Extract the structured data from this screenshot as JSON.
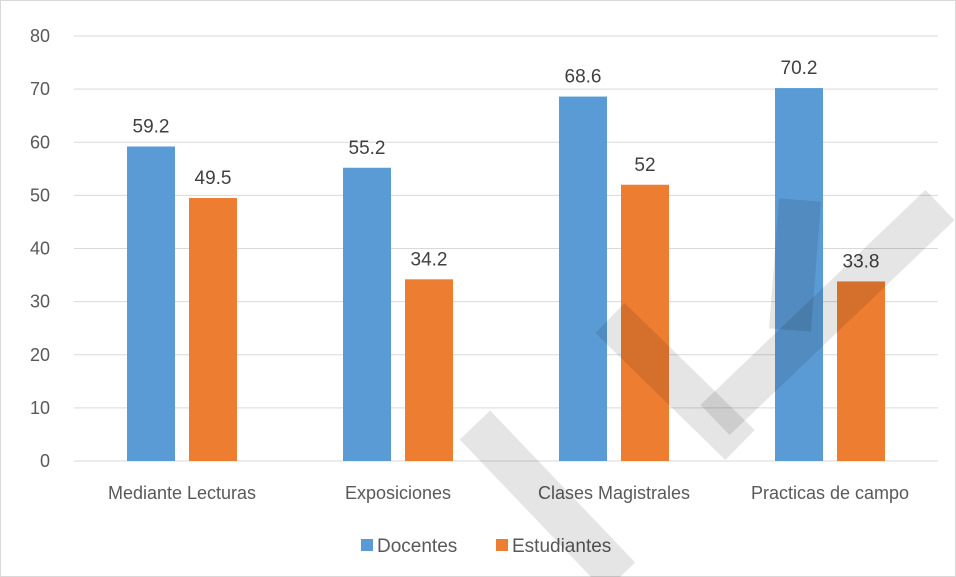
{
  "chart_data": {
    "type": "bar",
    "categories": [
      "Mediante Lecturas",
      "Exposiciones",
      "Clases Magistrales",
      "Practicas de campo"
    ],
    "series": [
      {
        "name": "Docentes",
        "values": [
          59.2,
          55.2,
          68.6,
          70.2
        ],
        "color": "#5b9bd5"
      },
      {
        "name": "Estudiantes",
        "values": [
          49.5,
          34.2,
          52,
          33.8
        ],
        "color": "#ed7d31"
      }
    ],
    "data_labels": [
      [
        "59.2",
        "55.2",
        "68.6",
        "70.2"
      ],
      [
        "49.5",
        "34.2",
        "52",
        "33.8"
      ]
    ],
    "y_ticks": [
      "0",
      "10",
      "20",
      "30",
      "40",
      "50",
      "60",
      "70",
      "80"
    ],
    "ylim": [
      0,
      80
    ],
    "grid": true,
    "legend_position": "bottom",
    "title": "",
    "xlabel": "",
    "ylabel": ""
  }
}
